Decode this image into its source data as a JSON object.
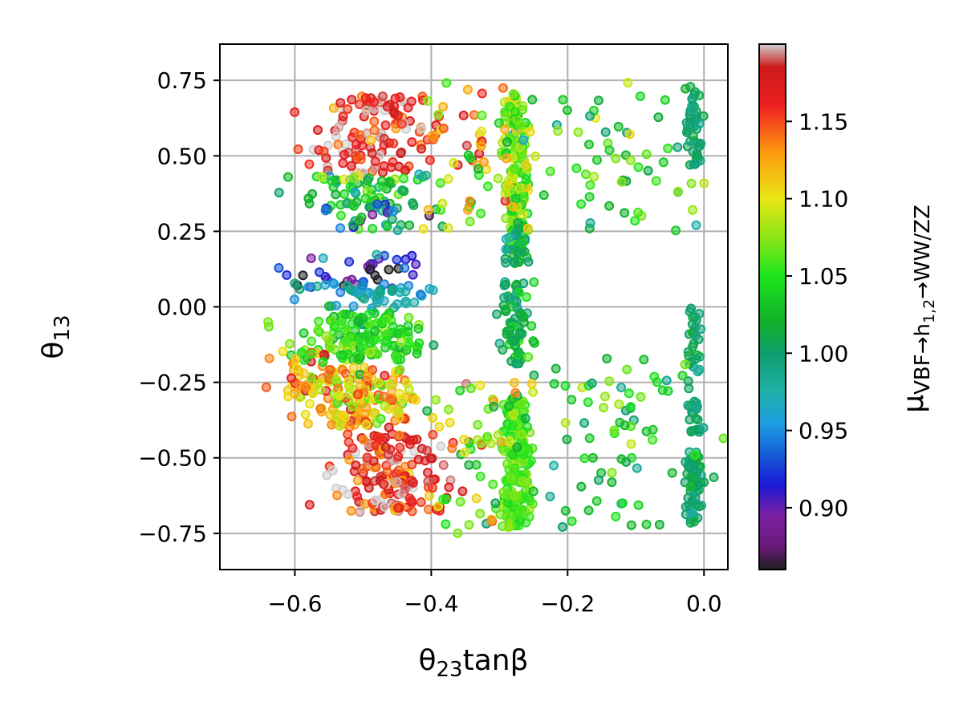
{
  "chart_data": {
    "type": "scatter",
    "title": "",
    "xlabel": "θ₂₃tanβ",
    "ylabel": "θ₁₃",
    "colorbar_label": "μ(VBF→h1,2→WW/ZZ)",
    "xlim": [
      -0.71,
      0.035
    ],
    "ylim": [
      -0.87,
      0.87
    ],
    "x_ticks": [
      -0.6,
      -0.4,
      -0.2,
      0.0
    ],
    "x_tick_labels": [
      "−0.6",
      "−0.4",
      "−0.2",
      "0.0"
    ],
    "y_ticks": [
      0.75,
      0.5,
      0.25,
      0.0,
      -0.25,
      -0.5,
      -0.75
    ],
    "y_tick_labels": [
      "0.75",
      "0.50",
      "0.25",
      "0.00",
      "−0.25",
      "−0.50",
      "−0.75"
    ],
    "grid": true,
    "colorbar": {
      "range": [
        0.86,
        1.2
      ],
      "ticks": [
        1.15,
        1.1,
        1.05,
        1.0,
        0.95,
        0.9
      ],
      "tick_labels": [
        "1.15",
        "1.10",
        "1.05",
        "1.00",
        "0.95",
        "0.90"
      ],
      "colormap": "nipy_spectral-like",
      "stops": [
        {
          "v": 0.86,
          "c": "#202020"
        },
        {
          "v": 0.875,
          "c": "#6a1b7a"
        },
        {
          "v": 0.895,
          "c": "#7b1fa2"
        },
        {
          "v": 0.915,
          "c": "#1a1ad6"
        },
        {
          "v": 0.935,
          "c": "#1560d8"
        },
        {
          "v": 0.955,
          "c": "#1e9fe0"
        },
        {
          "v": 0.975,
          "c": "#1fb0a8"
        },
        {
          "v": 1.0,
          "c": "#0f9e6e"
        },
        {
          "v": 1.02,
          "c": "#12b02a"
        },
        {
          "v": 1.05,
          "c": "#1de51d"
        },
        {
          "v": 1.075,
          "c": "#8ce617"
        },
        {
          "v": 1.1,
          "c": "#e8e614"
        },
        {
          "v": 1.13,
          "c": "#ff9a10"
        },
        {
          "v": 1.16,
          "c": "#ee2020"
        },
        {
          "v": 1.185,
          "c": "#cc1a1a"
        },
        {
          "v": 1.2,
          "c": "#d0d0d0"
        }
      ]
    },
    "clusters": [
      {
        "x": -0.275,
        "xs": 0.01,
        "y": 0.48,
        "ys": 0.22,
        "v": 1.07,
        "vs": 0.025,
        "n": 150
      },
      {
        "x": -0.275,
        "xs": 0.01,
        "y": 0.21,
        "ys": 0.07,
        "v": 1.0,
        "vs": 0.02,
        "n": 40
      },
      {
        "x": -0.275,
        "xs": 0.01,
        "y": -0.05,
        "ys": 0.14,
        "v": 1.015,
        "vs": 0.02,
        "n": 70
      },
      {
        "x": -0.275,
        "xs": 0.012,
        "y": -0.52,
        "ys": 0.21,
        "v": 1.06,
        "vs": 0.012,
        "n": 170
      },
      {
        "x": -0.48,
        "xs": 0.045,
        "y": 0.57,
        "ys": 0.13,
        "v": 1.17,
        "vs": 0.025,
        "n": 130
      },
      {
        "x": -0.5,
        "xs": 0.05,
        "y": 0.38,
        "ys": 0.06,
        "v": 1.03,
        "vs": 0.03,
        "n": 70
      },
      {
        "x": -0.5,
        "xs": 0.05,
        "y": 0.3,
        "ys": 0.05,
        "v": 0.95,
        "vs": 0.05,
        "n": 30
      },
      {
        "x": -0.5,
        "xs": 0.06,
        "y": 0.12,
        "ys": 0.06,
        "v": 0.92,
        "vs": 0.04,
        "n": 40
      },
      {
        "x": -0.49,
        "xs": 0.05,
        "y": 0.03,
        "ys": 0.05,
        "v": 0.975,
        "vs": 0.02,
        "n": 50
      },
      {
        "x": -0.5,
        "xs": 0.05,
        "y": -0.1,
        "ys": 0.08,
        "v": 1.05,
        "vs": 0.02,
        "n": 150
      },
      {
        "x": -0.5,
        "xs": 0.045,
        "y": -0.3,
        "ys": 0.1,
        "v": 1.11,
        "vs": 0.03,
        "n": 160
      },
      {
        "x": -0.46,
        "xs": 0.04,
        "y": -0.55,
        "ys": 0.13,
        "v": 1.17,
        "vs": 0.025,
        "n": 170
      },
      {
        "x": -0.015,
        "xs": 0.006,
        "y": 0.6,
        "ys": 0.13,
        "v": 1.0,
        "vs": 0.01,
        "n": 45
      },
      {
        "x": -0.015,
        "xs": 0.006,
        "y": -0.2,
        "ys": 0.22,
        "v": 1.0,
        "vs": 0.01,
        "n": 50
      },
      {
        "x": -0.015,
        "xs": 0.006,
        "y": -0.6,
        "ys": 0.12,
        "v": 1.0,
        "vs": 0.01,
        "n": 60
      },
      {
        "x": -0.14,
        "xs": 0.07,
        "y": 0.5,
        "ys": 0.25,
        "v": 1.035,
        "vs": 0.03,
        "n": 60
      },
      {
        "x": -0.14,
        "xs": 0.07,
        "y": -0.45,
        "ys": 0.28,
        "v": 1.035,
        "vs": 0.03,
        "n": 80
      },
      {
        "x": -0.33,
        "xs": 0.04,
        "y": 0.5,
        "ys": 0.25,
        "v": 1.1,
        "vs": 0.04,
        "n": 50
      },
      {
        "x": -0.33,
        "xs": 0.04,
        "y": -0.5,
        "ys": 0.25,
        "v": 1.09,
        "vs": 0.04,
        "n": 50
      },
      {
        "x": -0.59,
        "xs": 0.03,
        "y": -0.22,
        "ys": 0.08,
        "v": 1.12,
        "vs": 0.04,
        "n": 40
      }
    ]
  }
}
